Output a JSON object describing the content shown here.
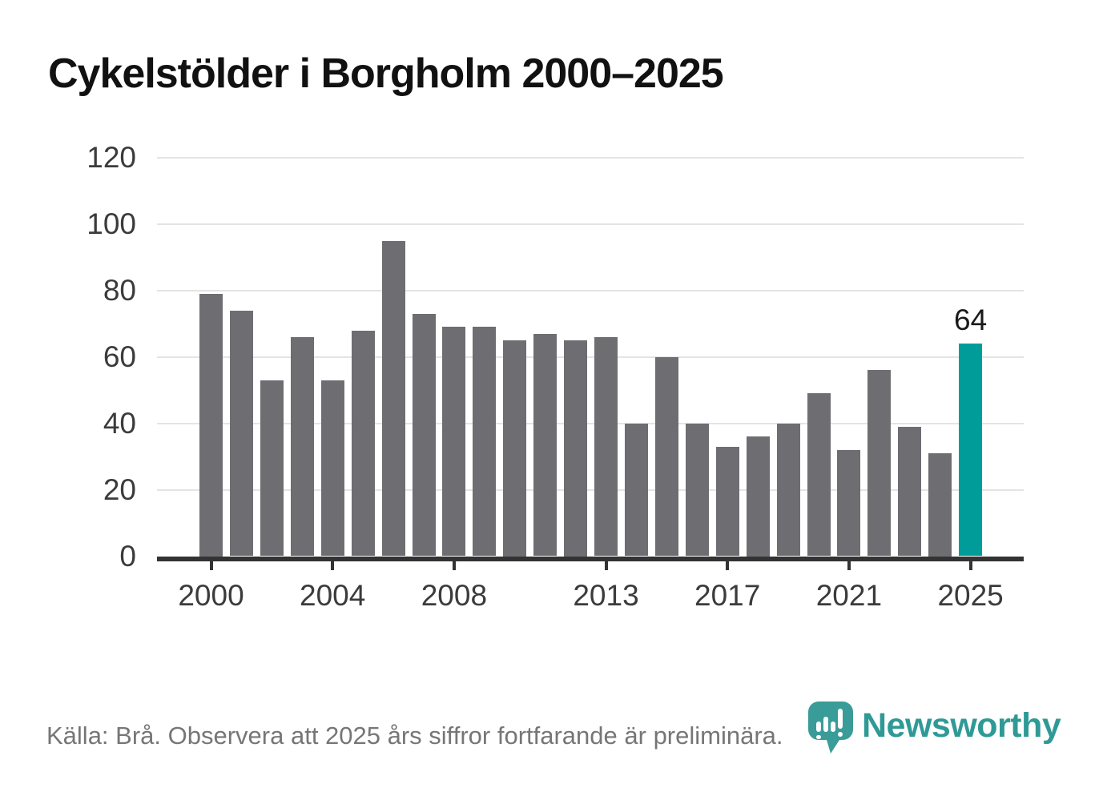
{
  "title": "Cykelstölder i Borgholm 2000–2025",
  "footer": {
    "source_note": "Källa: Brå. Observera att 2025 års siffror fortfarande är preliminära."
  },
  "logo": {
    "wordmark": "Newsworthy"
  },
  "colors": {
    "bar": "#6e6d72",
    "highlight": "#009c99",
    "gridline": "#e4e4e4",
    "axis": "#333333",
    "tick_label": "#3b3b3b",
    "title_text": "#111111",
    "footer_text": "#767676",
    "logo_teal": "#2f9a95"
  },
  "chart_data": {
    "type": "bar",
    "title": "Cykelstölder i Borgholm 2000–2025",
    "categories": [
      2000,
      2001,
      2002,
      2003,
      2004,
      2005,
      2006,
      2007,
      2008,
      2009,
      2010,
      2011,
      2012,
      2013,
      2014,
      2015,
      2016,
      2017,
      2018,
      2019,
      2020,
      2021,
      2022,
      2023,
      2024,
      2025
    ],
    "values": [
      79,
      74,
      53,
      66,
      53,
      68,
      95,
      73,
      69,
      69,
      65,
      67,
      65,
      66,
      40,
      60,
      40,
      33,
      36,
      40,
      49,
      32,
      56,
      39,
      31,
      64
    ],
    "highlight_index": 25,
    "highlight_value_label": "64",
    "xlabel": "",
    "ylabel": "",
    "ylim": [
      0,
      120
    ],
    "yticks": [
      0,
      20,
      40,
      60,
      80,
      100,
      120
    ],
    "xticks": [
      2000,
      2004,
      2008,
      2013,
      2017,
      2021,
      2025
    ],
    "grid": true,
    "legend_position": "none"
  }
}
